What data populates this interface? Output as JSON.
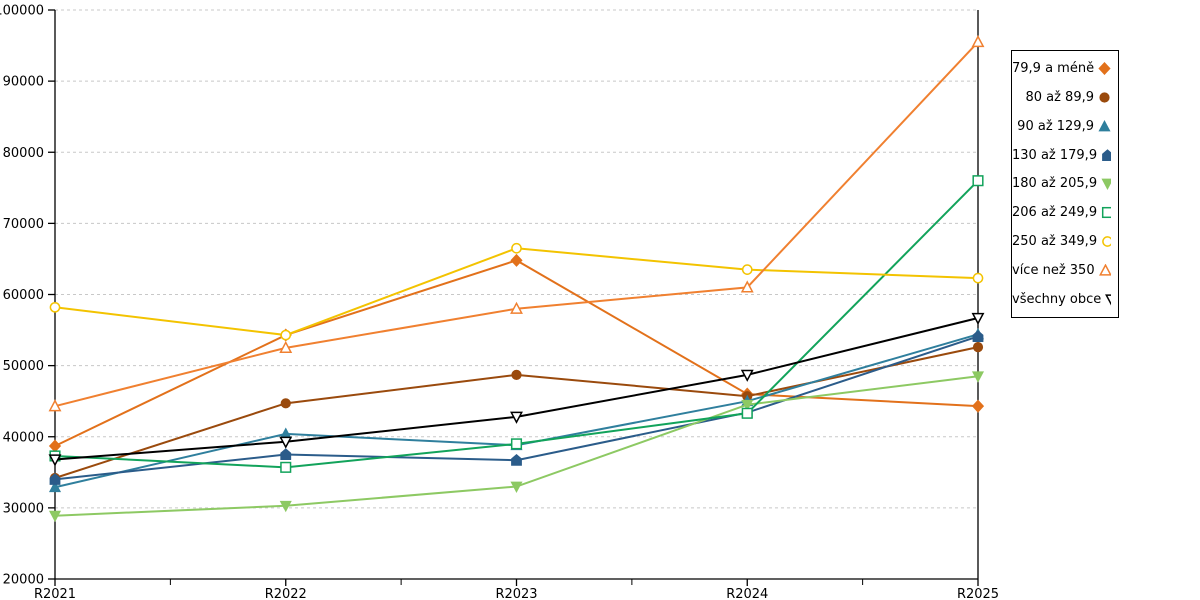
{
  "chart_data": {
    "type": "line",
    "title": "",
    "xlabel": "",
    "ylabel": "",
    "categories": [
      "R2021",
      "R2022",
      "R2023",
      "R2024",
      "R2025"
    ],
    "ylim": [
      20000,
      100000
    ],
    "ytick_step": 10000,
    "ytick_labels": [
      "20000",
      "30000",
      "40000",
      "50000",
      "60000",
      "70000",
      "80000",
      "90000",
      "100000"
    ],
    "grid": "horizontal-dashed",
    "grid_color": "#c8c8c8",
    "axis_color": "#000000",
    "legend_position": "right-outside",
    "series": [
      {
        "name": "79,9 a méně",
        "color": "#E2711B",
        "marker": "diamond",
        "filled": true,
        "values": [
          38700,
          54300,
          64800,
          46000,
          44300
        ]
      },
      {
        "name": "80 až 89,9",
        "color": "#9A4A0D",
        "marker": "circle",
        "filled": true,
        "values": [
          34200,
          44700,
          48700,
          45700,
          52600
        ]
      },
      {
        "name": "90 až 129,9",
        "color": "#2F7F9D",
        "marker": "triangle-up",
        "filled": true,
        "values": [
          32900,
          40400,
          38800,
          45000,
          54400
        ]
      },
      {
        "name": "130 až 179,9",
        "color": "#2B5C8A",
        "marker": "pentagon",
        "filled": true,
        "values": [
          34000,
          37500,
          36700,
          43400,
          54100
        ]
      },
      {
        "name": "180 až 205,9",
        "color": "#8DC963",
        "marker": "triangle-down",
        "filled": true,
        "values": [
          28900,
          30300,
          33000,
          44500,
          48500
        ]
      },
      {
        "name": "206 až 249,9",
        "color": "#12A35B",
        "marker": "square",
        "filled": false,
        "values": [
          37300,
          35700,
          39000,
          43300,
          76000
        ]
      },
      {
        "name": "250 až 349,9",
        "color": "#F3C300",
        "marker": "circle",
        "filled": false,
        "values": [
          58200,
          54300,
          66500,
          63500,
          62300
        ]
      },
      {
        "name": "více než 350",
        "color": "#F08030",
        "marker": "triangle-up",
        "filled": false,
        "values": [
          44300,
          52500,
          58000,
          61000,
          95500
        ]
      },
      {
        "name": "všechny obce",
        "color": "#000000",
        "marker": "triangle-down",
        "filled": false,
        "values": [
          36800,
          39300,
          42800,
          48700,
          56700
        ]
      }
    ]
  }
}
